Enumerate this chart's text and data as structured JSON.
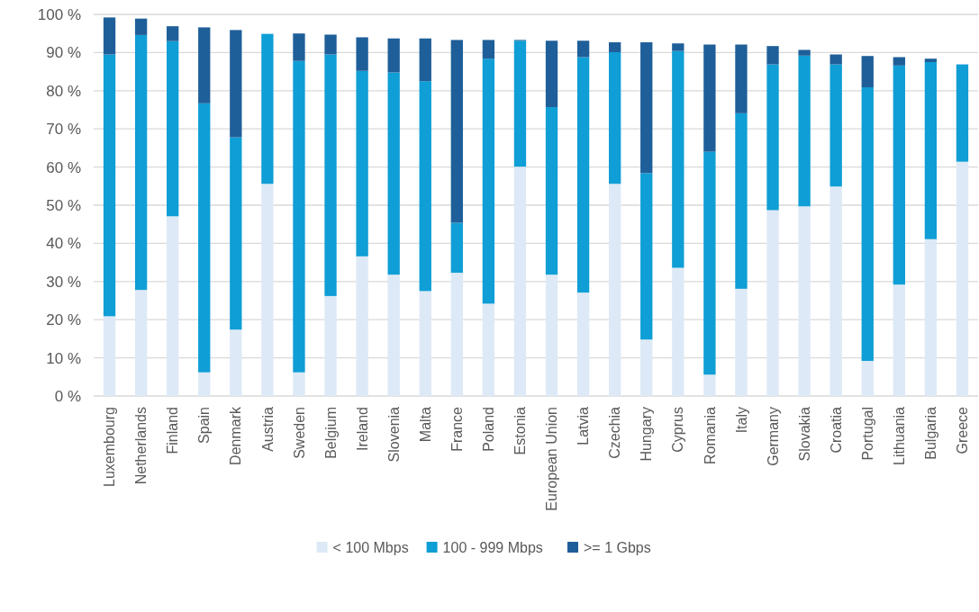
{
  "chart_data": {
    "type": "bar",
    "stacked": true,
    "grid": "y",
    "legend": "bottom",
    "categories": [
      "Luxembourg",
      "Netherlands",
      "Finland",
      "Spain",
      "Denmark",
      "Austria",
      "Sweden",
      "Belgium",
      "Ireland",
      "Slovenia",
      "Malta",
      "France",
      "Poland",
      "Estonia",
      "European Union",
      "Latvia",
      "Czechia",
      "Hungary",
      "Cyprus",
      "Romania",
      "Italy",
      "Germany",
      "Slovakia",
      "Croatia",
      "Portugal",
      "Lithuania",
      "Bulgaria",
      "Greece"
    ],
    "series": [
      {
        "name": "< 100 Mbps",
        "color": "#dde9f6",
        "values": [
          20.9,
          27.8,
          47.1,
          6.2,
          17.4,
          55.6,
          6.2,
          26.2,
          36.6,
          31.8,
          27.5,
          32.3,
          24.2,
          60.1,
          31.8,
          27.1,
          55.6,
          14.8,
          33.6,
          5.6,
          28.1,
          48.7,
          49.7,
          54.9,
          9.2,
          29.2,
          41.1,
          61.4
        ]
      },
      {
        "name": "100 - 999 Mbps",
        "color": "#0f9ed5",
        "values": [
          68.6,
          66.8,
          45.9,
          70.5,
          50.4,
          39.3,
          81.6,
          63.3,
          48.6,
          53.0,
          55.0,
          13.1,
          64.2,
          33.0,
          43.9,
          61.7,
          34.5,
          43.6,
          56.8,
          58.4,
          46.0,
          38.2,
          39.5,
          32.0,
          71.7,
          57.4,
          46.4,
          25.5
        ]
      },
      {
        "name": ">= 1 Gbps",
        "color": "#1f5f99",
        "values": [
          9.7,
          4.3,
          3.9,
          19.9,
          28.1,
          0,
          7.2,
          5.2,
          8.8,
          8.9,
          11.2,
          47.9,
          4.9,
          0.2,
          17.4,
          4.3,
          2.6,
          34.3,
          2.0,
          28.1,
          18.0,
          4.8,
          1.5,
          2.6,
          8.2,
          2.2,
          0.9,
          0
        ]
      }
    ],
    "ylim": [
      0,
      100
    ],
    "yticks": [
      {
        "value": 0,
        "label": "0 %"
      },
      {
        "value": 10,
        "label": "10 %"
      },
      {
        "value": 20,
        "label": "20 %"
      },
      {
        "value": 30,
        "label": "30 %"
      },
      {
        "value": 40,
        "label": "40 %"
      },
      {
        "value": 50,
        "label": "50 %"
      },
      {
        "value": 60,
        "label": "60 %"
      },
      {
        "value": 70,
        "label": "70 %"
      },
      {
        "value": 80,
        "label": "80 %"
      },
      {
        "value": 90,
        "label": "90 %"
      },
      {
        "value": 100,
        "label": "100 %"
      }
    ]
  }
}
